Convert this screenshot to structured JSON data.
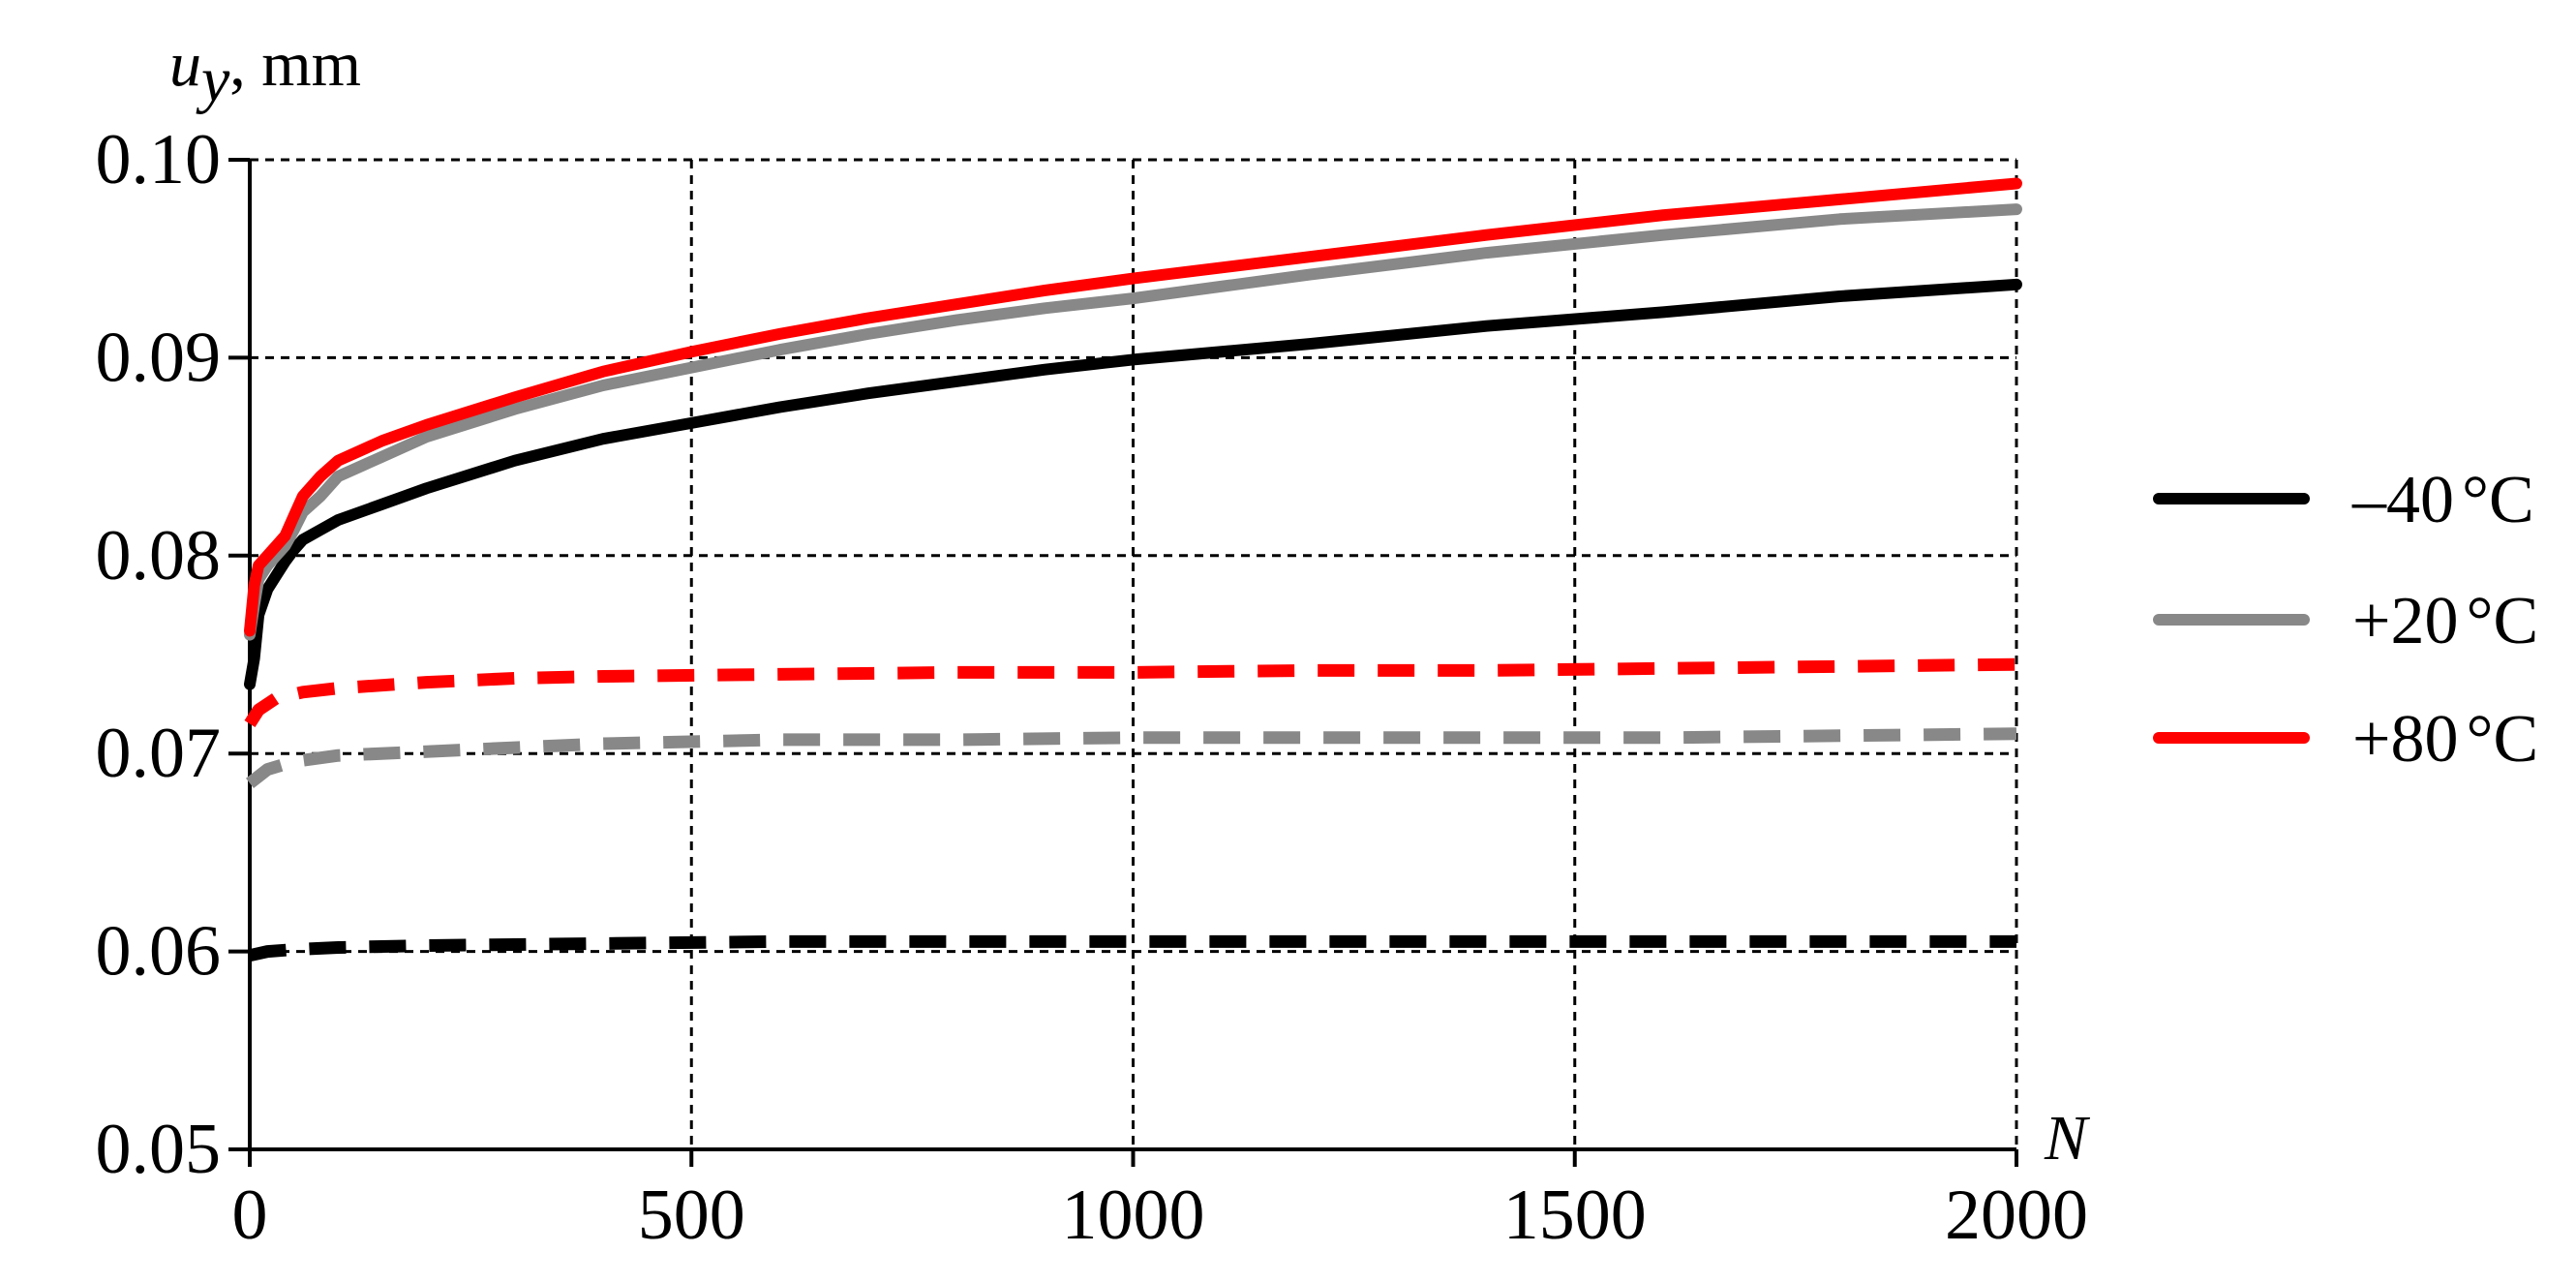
{
  "chart_data": {
    "type": "line",
    "title": "",
    "xlabel": "N",
    "ylabel_main": "u",
    "ylabel_sub": "y",
    "ylabel_unit": ", mm",
    "xlim": [
      0,
      2000
    ],
    "ylim": [
      0.05,
      0.1
    ],
    "x_ticks": [
      0,
      500,
      1000,
      1500,
      2000
    ],
    "x_tick_labels": [
      "0",
      "500",
      "1000",
      "1500",
      "2000"
    ],
    "y_ticks": [
      0.05,
      0.06,
      0.07,
      0.08,
      0.09,
      0.1
    ],
    "y_tick_labels": [
      "0.05",
      "0.06",
      "0.07",
      "0.08",
      "0.09",
      "0.10"
    ],
    "grid": true,
    "legend_position": "right",
    "series": [
      {
        "name": "−40 °C",
        "legend_text": "–40",
        "color": "#000000",
        "style": "solid",
        "x": [
          0,
          5,
          10,
          20,
          30,
          40,
          50,
          60,
          80,
          100,
          150,
          200,
          300,
          400,
          500,
          600,
          700,
          800,
          900,
          1000,
          1200,
          1400,
          1600,
          1800,
          2000
        ],
        "y": [
          0.0735,
          0.0748,
          0.077,
          0.0783,
          0.079,
          0.0797,
          0.0803,
          0.0808,
          0.0813,
          0.0818,
          0.0826,
          0.0834,
          0.0848,
          0.0859,
          0.0867,
          0.0875,
          0.0882,
          0.0888,
          0.0894,
          0.0899,
          0.0907,
          0.0916,
          0.0923,
          0.0931,
          0.0937
        ]
      },
      {
        "name": "+20 °C",
        "legend_text": "+20",
        "color": "#888888",
        "style": "solid",
        "x": [
          0,
          5,
          10,
          20,
          30,
          40,
          50,
          60,
          80,
          100,
          150,
          200,
          300,
          400,
          500,
          600,
          700,
          800,
          900,
          1000,
          1200,
          1400,
          1600,
          1800,
          2000
        ],
        "y": [
          0.076,
          0.0775,
          0.0788,
          0.0795,
          0.08,
          0.0805,
          0.0813,
          0.0822,
          0.083,
          0.084,
          0.085,
          0.086,
          0.0874,
          0.0886,
          0.0895,
          0.0904,
          0.0912,
          0.0919,
          0.0925,
          0.093,
          0.0942,
          0.0953,
          0.0962,
          0.097,
          0.0975
        ]
      },
      {
        "name": "+80 °C",
        "legend_text": "+80",
        "color": "#ff0000",
        "style": "solid",
        "x": [
          0,
          5,
          10,
          20,
          30,
          40,
          50,
          60,
          80,
          100,
          150,
          200,
          300,
          400,
          500,
          600,
          700,
          800,
          900,
          1000,
          1200,
          1400,
          1600,
          1800,
          2000
        ],
        "y": [
          0.0762,
          0.0785,
          0.0795,
          0.08,
          0.0805,
          0.081,
          0.082,
          0.083,
          0.084,
          0.0848,
          0.0858,
          0.0866,
          0.088,
          0.0893,
          0.0903,
          0.0912,
          0.092,
          0.0927,
          0.0934,
          0.094,
          0.0951,
          0.0962,
          0.0972,
          0.098,
          0.0988
        ]
      },
      {
        "name": "−40 °C dashed",
        "color": "#000000",
        "style": "dashed",
        "x": [
          0,
          20,
          50,
          100,
          200,
          400,
          600,
          800,
          1000,
          1200,
          1400,
          1600,
          1800,
          2000
        ],
        "y": [
          0.0598,
          0.06,
          0.0601,
          0.0602,
          0.0603,
          0.0604,
          0.0605,
          0.0605,
          0.0605,
          0.0605,
          0.0605,
          0.0605,
          0.0605,
          0.0605
        ]
      },
      {
        "name": "+20 °C dashed",
        "color": "#888888",
        "style": "dashed",
        "x": [
          0,
          20,
          50,
          100,
          200,
          300,
          400,
          600,
          800,
          1000,
          1200,
          1400,
          1600,
          1800,
          2000
        ],
        "y": [
          0.0685,
          0.0692,
          0.0696,
          0.0699,
          0.0701,
          0.0703,
          0.0705,
          0.0707,
          0.0707,
          0.0708,
          0.0708,
          0.0708,
          0.0708,
          0.0709,
          0.071
        ]
      },
      {
        "name": "+80 °C dashed",
        "color": "#ff0000",
        "style": "dashed",
        "x": [
          0,
          10,
          30,
          60,
          100,
          200,
          300,
          400,
          600,
          800,
          1000,
          1200,
          1400,
          1600,
          1800,
          2000
        ],
        "y": [
          0.0715,
          0.0722,
          0.0728,
          0.0731,
          0.0733,
          0.0736,
          0.0738,
          0.0739,
          0.074,
          0.0741,
          0.0741,
          0.0742,
          0.0742,
          0.0743,
          0.0744,
          0.0745
        ]
      }
    ],
    "legend": [
      {
        "label": "–40",
        "unit": "°C",
        "color": "#000000"
      },
      {
        "label": "+20",
        "unit": "°C",
        "color": "#888888"
      },
      {
        "label": "+80",
        "unit": "°C",
        "color": "#ff0000"
      }
    ]
  }
}
